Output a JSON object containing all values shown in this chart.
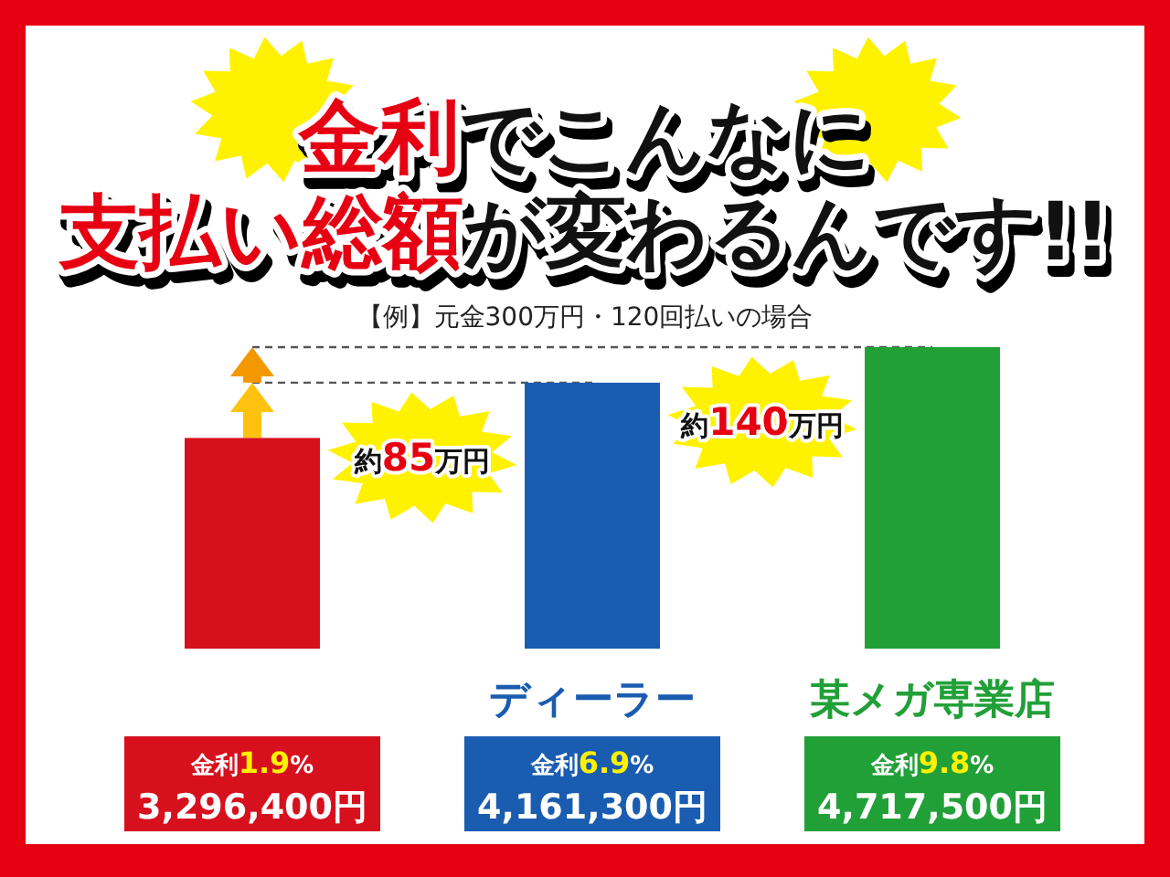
{
  "chart_data": {
    "type": "bar",
    "title": "**金利**でこんなに**支払い総額**が変わるんです!!",
    "subtitle": "【例】元金300万円・120回払いの場合",
    "categories": [
      null,
      "ディーラー",
      "某メガ専業店"
    ],
    "values": [
      3296400,
      4161300,
      4717500
    ],
    "colors": [
      "#d7101e",
      "#1a5cb0",
      "#22a038"
    ],
    "value_labels": [
      "3,296,400円",
      "4,161,300円",
      "4,717,500円"
    ],
    "annotations": [
      "金利**1.9**%",
      "金利**6.9**%",
      "金利**9.8**%",
      "約**85**万円",
      "約**140**万円"
    ],
    "ref_lines": [
      {
        "axis": "y",
        "value": 4161300,
        "line_style": "dashed",
        "color": "#555555"
      },
      {
        "axis": "y",
        "value": 4717500,
        "line_style": "dashed",
        "color": "#555555"
      }
    ]
  }
}
